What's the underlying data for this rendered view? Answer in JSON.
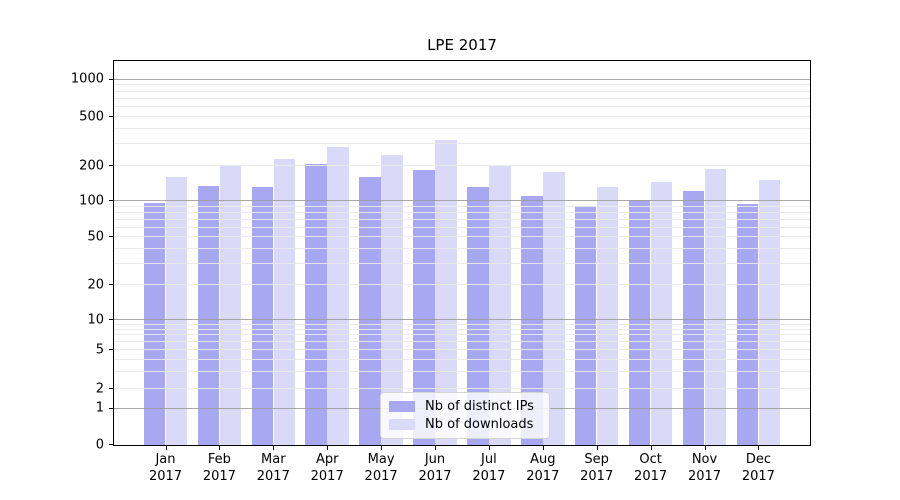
{
  "chart_data": {
    "type": "bar",
    "title": "LPE 2017",
    "categories": [
      "Jan 2017",
      "Feb 2017",
      "Mar 2017",
      "Apr 2017",
      "May 2017",
      "Jun 2017",
      "Jul 2017",
      "Aug 2017",
      "Sep 2017",
      "Oct 2017",
      "Nov 2017",
      "Dec 2017"
    ],
    "series": [
      {
        "name": "Nb of distinct IPs",
        "color": "#a8a8f2",
        "values": [
          95,
          132,
          130,
          203,
          158,
          180,
          130,
          108,
          89,
          100,
          120,
          93
        ]
      },
      {
        "name": "Nb of downloads",
        "color": "#dadaf8",
        "values": [
          158,
          200,
          222,
          280,
          241,
          320,
          196,
          175,
          130,
          143,
          185,
          149
        ]
      }
    ],
    "yscale": "symlog",
    "y_ticks": [
      0,
      1,
      2,
      5,
      10,
      20,
      50,
      100,
      200,
      500,
      1000
    ],
    "y_minor_gridlines": [
      2,
      3,
      4,
      5,
      6,
      7,
      8,
      9,
      20,
      30,
      40,
      50,
      60,
      70,
      80,
      90,
      200,
      300,
      400,
      500,
      600,
      700,
      800,
      900
    ],
    "y_major_gridlines": [
      1,
      10,
      100,
      1000
    ],
    "ylim": [
      0,
      1400
    ],
    "xlabel": "",
    "ylabel": "",
    "grid": "both",
    "legend_position": "lower-center",
    "colors": {
      "bar_distinct_ips": "#a8a8f2",
      "bar_downloads": "#dadaf8",
      "major_grid": "#9b9b9b",
      "minor_grid": "#e9e9e9",
      "axis": "#000000",
      "background": "#ffffff"
    }
  }
}
